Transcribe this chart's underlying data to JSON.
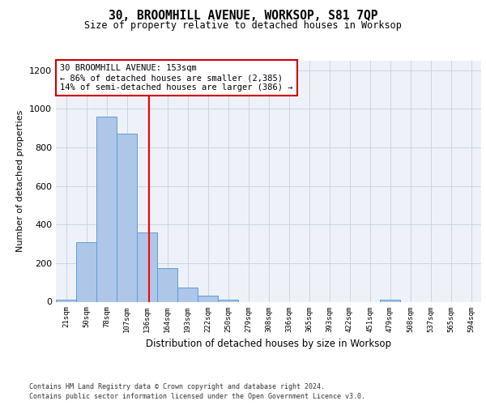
{
  "title": "30, BROOMHILL AVENUE, WORKSOP, S81 7QP",
  "subtitle": "Size of property relative to detached houses in Worksop",
  "xlabel": "Distribution of detached houses by size in Worksop",
  "ylabel": "Number of detached properties",
  "categories": [
    "21sqm",
    "50sqm",
    "78sqm",
    "107sqm",
    "136sqm",
    "164sqm",
    "193sqm",
    "222sqm",
    "250sqm",
    "279sqm",
    "308sqm",
    "336sqm",
    "365sqm",
    "393sqm",
    "422sqm",
    "451sqm",
    "479sqm",
    "508sqm",
    "537sqm",
    "565sqm",
    "594sqm"
  ],
  "values": [
    10,
    310,
    960,
    870,
    360,
    175,
    75,
    30,
    10,
    0,
    0,
    0,
    0,
    0,
    0,
    0,
    10,
    0,
    0,
    0,
    0
  ],
  "bar_color": "#aec6e8",
  "bar_edge_color": "#5a9fd4",
  "grid_color": "#c8d4e8",
  "background_color": "#eef2f8",
  "annotation_text": "30 BROOMHILL AVENUE: 153sqm\n← 86% of detached houses are smaller (2,385)\n14% of semi-detached houses are larger (386) →",
  "annotation_border_color": "#cc0000",
  "ylim": [
    0,
    1250
  ],
  "yticks": [
    0,
    200,
    400,
    600,
    800,
    1000,
    1200
  ],
  "footer_line1": "Contains HM Land Registry data © Crown copyright and database right 2024.",
  "footer_line2": "Contains public sector information licensed under the Open Government Licence v3.0."
}
